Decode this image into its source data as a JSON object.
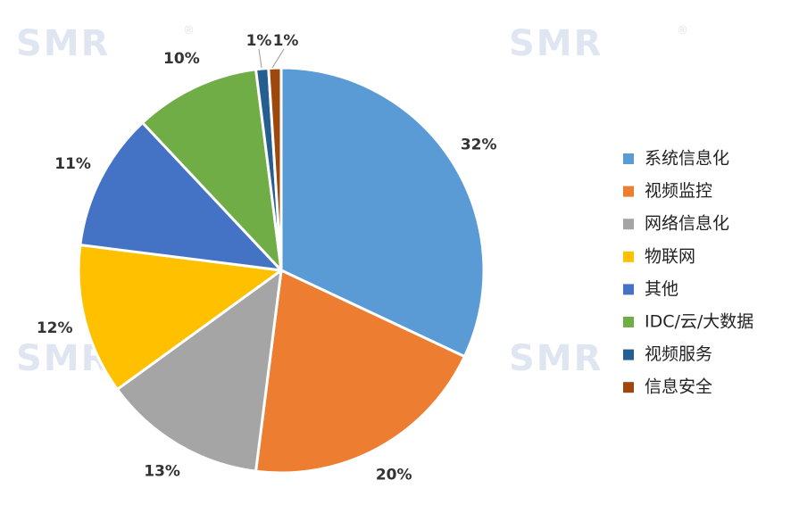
{
  "watermark": {
    "text": "SMR",
    "mark": "®"
  },
  "chart_data": {
    "type": "pie",
    "title": "",
    "categories": [
      "系统信息化",
      "视频监控",
      "网络信息化",
      "物联网",
      "其他",
      "IDC/云/大数据",
      "视频服务",
      "信息安全"
    ],
    "values": [
      32,
      20,
      13,
      12,
      11,
      10,
      1,
      1
    ],
    "labels": [
      "32%",
      "20%",
      "13%",
      "12%",
      "11%",
      "10%",
      "1%",
      "1%"
    ],
    "colors": [
      "#5b9bd5",
      "#ed7d31",
      "#a5a5a5",
      "#ffc000",
      "#4472c4",
      "#70ad47",
      "#255e91",
      "#9e480e"
    ],
    "legend_position": "right"
  }
}
